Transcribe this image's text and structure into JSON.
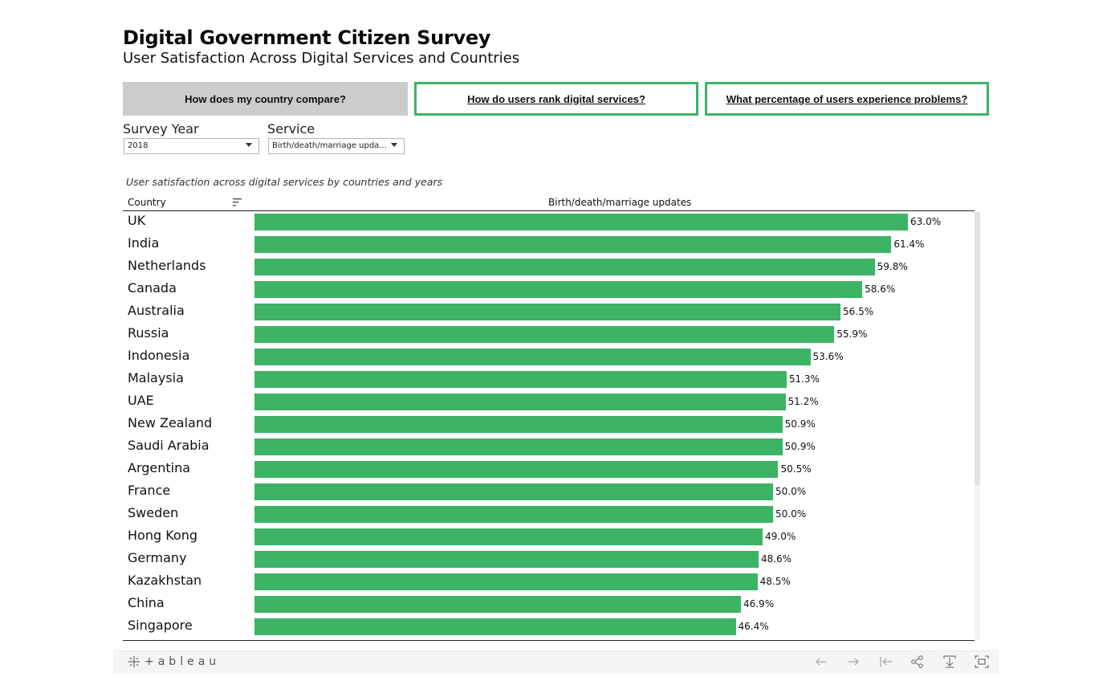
{
  "header": {
    "title": "Digital Government Citizen Survey",
    "subtitle": "User Satisfaction Across Digital Services and Countries"
  },
  "nav": {
    "compare": "How does my country compare?",
    "rank": "How do users rank digital services?",
    "problems": "What percentage of users experience problems?"
  },
  "filters": {
    "year_label": "Survey Year",
    "year_value": "2018",
    "service_label": "Service",
    "service_value": "Birth/death/marriage upda..."
  },
  "colors": {
    "bar": "#3db365",
    "accent": "#3db365"
  },
  "chart_data": {
    "type": "bar",
    "orientation": "horizontal",
    "title": "User satisfaction across digital services by countries and years",
    "category_header": "Country",
    "measure_header": "Birth/death/marriage updates",
    "xlim": [
      0,
      70
    ],
    "categories": [
      "UK",
      "India",
      "Netherlands",
      "Canada",
      "Australia",
      "Russia",
      "Indonesia",
      "Malaysia",
      "UAE",
      "New Zealand",
      "Saudi Arabia",
      "Argentina",
      "France",
      "Sweden",
      "Hong Kong",
      "Germany",
      "Kazakhstan",
      "China",
      "Singapore"
    ],
    "values": [
      63.0,
      61.4,
      59.8,
      58.6,
      56.5,
      55.9,
      53.6,
      51.3,
      51.2,
      50.9,
      50.9,
      50.5,
      50.0,
      50.0,
      49.0,
      48.6,
      48.5,
      46.9,
      46.4
    ],
    "labels": [
      "63.0%",
      "61.4%",
      "59.8%",
      "58.6%",
      "56.5%",
      "55.9%",
      "53.6%",
      "51.3%",
      "51.2%",
      "50.9%",
      "50.9%",
      "50.5%",
      "50.0%",
      "50.0%",
      "49.0%",
      "48.6%",
      "48.5%",
      "46.9%",
      "46.4%"
    ]
  },
  "toolbar": {
    "logo_text": "+ableau",
    "icons": [
      "undo-icon",
      "redo-icon",
      "revert-icon",
      "share-icon",
      "download-icon",
      "fullscreen-icon"
    ]
  }
}
